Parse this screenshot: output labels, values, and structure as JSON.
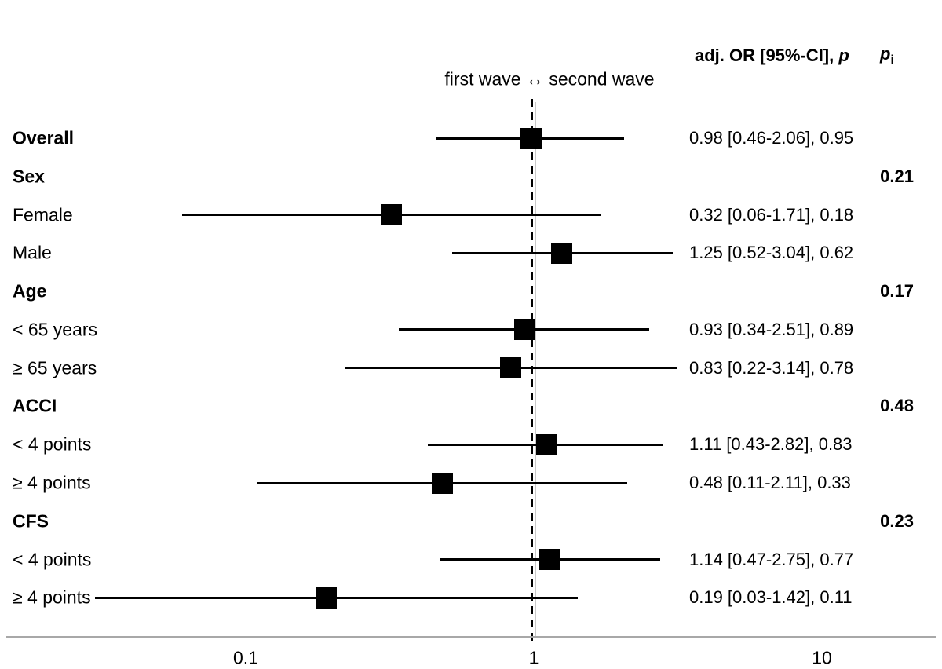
{
  "subtitle": "first wave ↔ second wave",
  "header": {
    "estimate_prefix": "adj. OR [95%-CI], ",
    "estimate_p": "p",
    "interaction_p": "p",
    "interaction_sub": "i"
  },
  "chart_data": {
    "type": "forest",
    "title": "first wave ↔ second wave",
    "estimate_column_header": "adj. OR [95%-CI], p",
    "interaction_column_header": "pi",
    "x_axis": {
      "scale": "log10",
      "ticks": [
        {
          "value": 0.1,
          "label": "0.1"
        },
        {
          "value": 1,
          "label": "1"
        },
        {
          "value": 10,
          "label": "10"
        }
      ],
      "grid": false
    },
    "reference_line": {
      "value": 1,
      "style": "dashed"
    },
    "rows": [
      {
        "label": "Overall",
        "bold": true,
        "group_header": false,
        "or": 0.98,
        "ci_low": 0.46,
        "ci_high": 2.06,
        "p": 0.95,
        "display": "0.98 [0.46-2.06], 0.95"
      },
      {
        "label": "Sex",
        "bold": true,
        "group_header": true,
        "p_interaction": "0.21"
      },
      {
        "label": "Female",
        "bold": false,
        "group_header": false,
        "or": 0.32,
        "ci_low": 0.06,
        "ci_high": 1.71,
        "p": 0.18,
        "display": "0.32 [0.06-1.71], 0.18"
      },
      {
        "label": "Male",
        "bold": false,
        "group_header": false,
        "or": 1.25,
        "ci_low": 0.52,
        "ci_high": 3.04,
        "p": 0.62,
        "display": "1.25 [0.52-3.04], 0.62"
      },
      {
        "label": "Age",
        "bold": true,
        "group_header": true,
        "p_interaction": "0.17"
      },
      {
        "label": "< 65 years",
        "bold": false,
        "group_header": false,
        "or": 0.93,
        "ci_low": 0.34,
        "ci_high": 2.51,
        "p": 0.89,
        "display": "0.93 [0.34-2.51], 0.89"
      },
      {
        "label": "≥ 65 years",
        "bold": false,
        "group_header": false,
        "or": 0.83,
        "ci_low": 0.22,
        "ci_high": 3.14,
        "p": 0.78,
        "display": "0.83 [0.22-3.14], 0.78"
      },
      {
        "label": "ACCI",
        "bold": true,
        "group_header": true,
        "p_interaction": "0.48"
      },
      {
        "label": "< 4 points",
        "bold": false,
        "group_header": false,
        "or": 1.11,
        "ci_low": 0.43,
        "ci_high": 2.82,
        "p": 0.83,
        "display": "1.11 [0.43-2.82], 0.83"
      },
      {
        "label": "≥ 4 points",
        "bold": false,
        "group_header": false,
        "or": 0.48,
        "ci_low": 0.11,
        "ci_high": 2.11,
        "p": 0.33,
        "display": "0.48 [0.11-2.11], 0.33"
      },
      {
        "label": "CFS",
        "bold": true,
        "group_header": true,
        "p_interaction": "0.23"
      },
      {
        "label": "< 4 points",
        "bold": false,
        "group_header": false,
        "or": 1.14,
        "ci_low": 0.47,
        "ci_high": 2.75,
        "p": 0.77,
        "display": "1.14 [0.47-2.75], 0.77"
      },
      {
        "label": "≥ 4 points",
        "bold": false,
        "group_header": false,
        "or": 0.19,
        "ci_low": 0.03,
        "ci_high": 1.42,
        "p": 0.11,
        "display": "0.19 [0.03-1.42], 0.11"
      }
    ],
    "colors": {
      "marker": "#000000",
      "ci_line": "#000000",
      "reference_line": "#000000",
      "gridline": "#c9c9c9",
      "axis": "#a8a8a8",
      "text": "#000000"
    }
  }
}
